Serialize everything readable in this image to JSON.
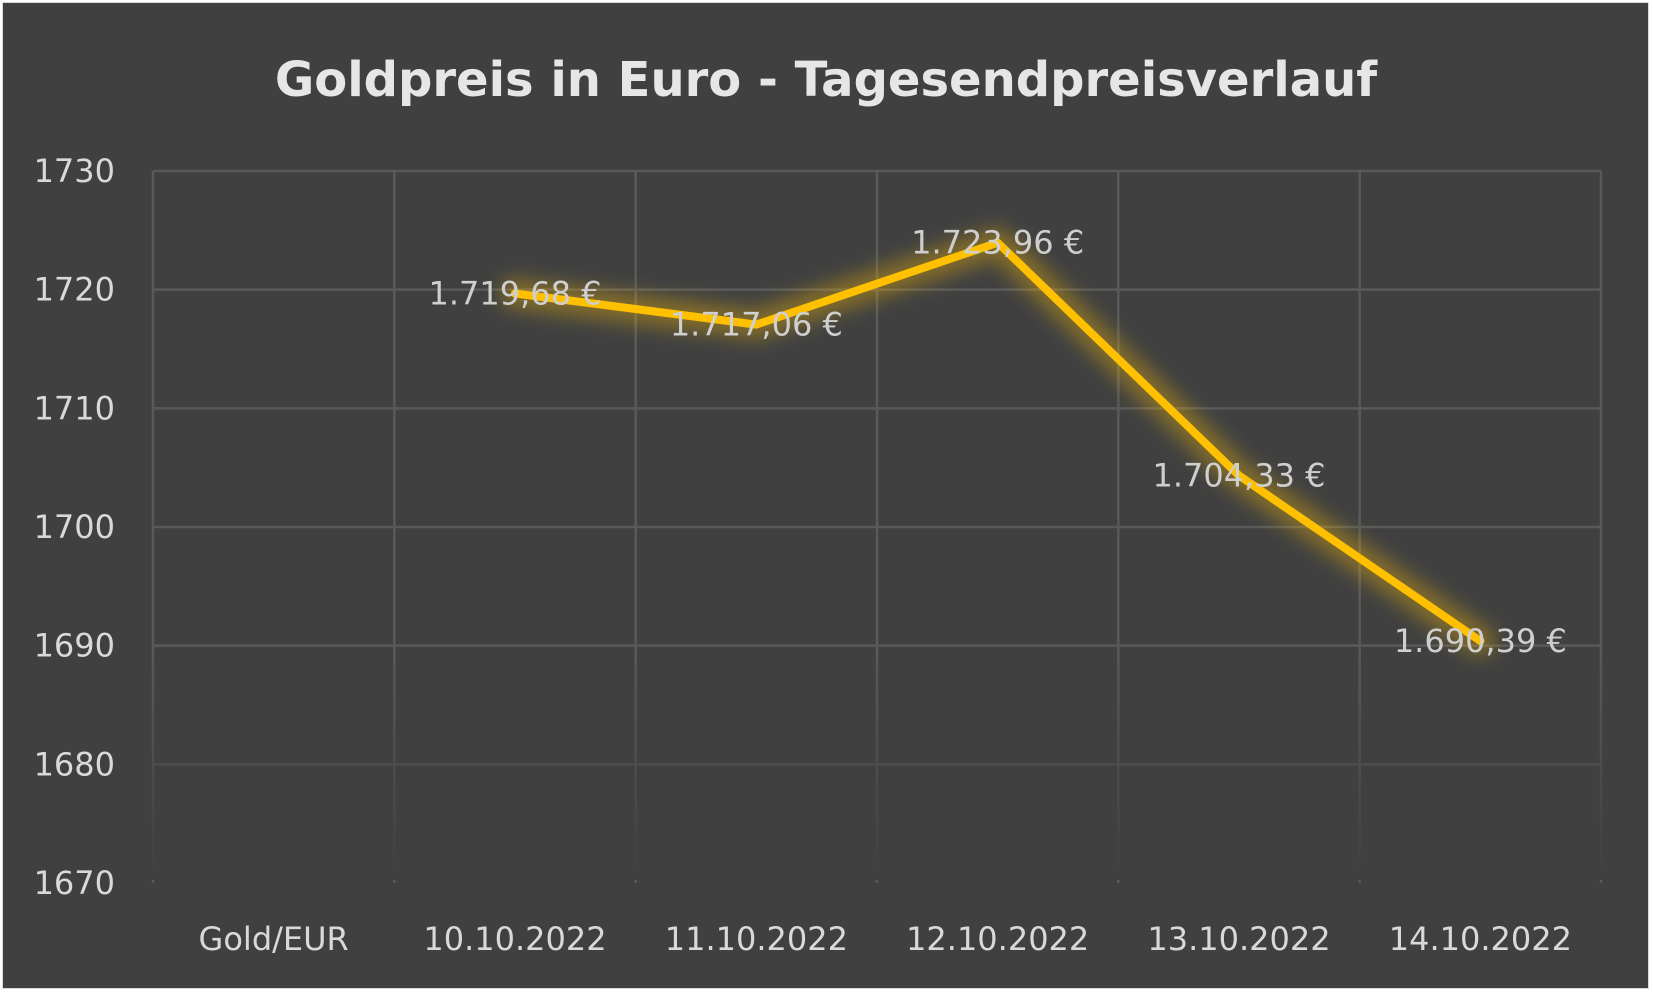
{
  "chart_data": {
    "type": "line",
    "title": "Goldpreis in Euro - Tagesendpreisverlauf",
    "categories": [
      "Gold/EUR",
      "10.10.2022",
      "11.10.2022",
      "12.10.2022",
      "13.10.2022",
      "14.10.2022"
    ],
    "series": [
      {
        "values": [
          null,
          1719.68,
          1717.06,
          1723.96,
          1704.33,
          1690.39
        ],
        "labels": [
          "",
          "1.719,68 €",
          "1.717,06 €",
          "1.723,96 €",
          "1.704,33 €",
          "1.690,39 €"
        ],
        "color": "#ffc000"
      }
    ],
    "ylim": [
      1670,
      1730
    ],
    "yticks": [
      1730,
      1720,
      1710,
      1700,
      1690,
      1680,
      1670
    ],
    "grid": true,
    "legend": "none",
    "background": "#404040"
  }
}
